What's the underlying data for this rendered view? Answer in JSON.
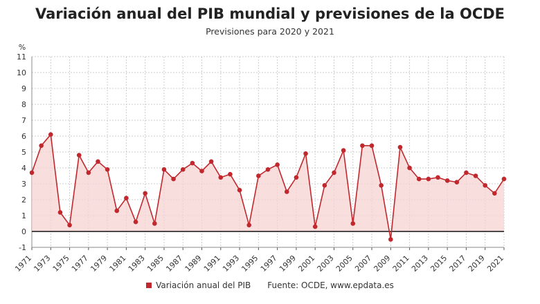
{
  "colors": {
    "line": "#c0282d",
    "fill": "#f7d3d3",
    "grid": "#cccccc",
    "zero": "#111111"
  },
  "chart_data": {
    "type": "line",
    "title": "Variación anual del PIB mundial y previsiones de la OCDE",
    "subtitle": "Previsiones para 2020 y 2021",
    "ylabel": "%",
    "ylim": [
      -1,
      11
    ],
    "grid": true,
    "series": [
      {
        "name": "Variación anual del PIB",
        "x": [
          1971,
          1972,
          1973,
          1974,
          1975,
          1976,
          1977,
          1978,
          1979,
          1980,
          1981,
          1982,
          1983,
          1984,
          1985,
          1986,
          1987,
          1988,
          1989,
          1990,
          1991,
          1992,
          1993,
          1994,
          1995,
          1996,
          1997,
          1998,
          1999,
          2000,
          2001,
          2002,
          2003,
          2004,
          2005,
          2006,
          2007,
          2008,
          2009,
          2010,
          2011,
          2012,
          2013,
          2014,
          2015,
          2016,
          2017,
          2018,
          2019,
          2020,
          2021
        ],
        "values": [
          3.7,
          5.4,
          6.1,
          1.2,
          0.4,
          4.8,
          3.7,
          4.4,
          3.9,
          1.3,
          2.1,
          0.6,
          2.4,
          0.5,
          3.9,
          3.3,
          3.9,
          4.3,
          3.8,
          4.4,
          3.4,
          3.6,
          2.6,
          0.4,
          3.5,
          3.9,
          4.2,
          2.5,
          3.4,
          4.9,
          0.3,
          2.9,
          3.7,
          5.1,
          0.5,
          5.4,
          5.4,
          2.9,
          -0.5,
          5.3,
          4.0,
          3.3,
          3.3,
          3.4,
          3.2,
          3.1,
          3.7,
          3.5,
          2.9,
          2.4,
          3.3
        ]
      }
    ],
    "yticks": [
      "-1",
      "0",
      "1",
      "2",
      "3",
      "4",
      "5",
      "6",
      "7",
      "8",
      "9",
      "10",
      "11"
    ],
    "xticks": [
      "1971",
      "1973",
      "1975",
      "1977",
      "1979",
      "1981",
      "1983",
      "1985",
      "1987",
      "1989",
      "1991",
      "1993",
      "1995",
      "1997",
      "1999",
      "2001",
      "2003",
      "2005",
      "2007",
      "2009",
      "2011",
      "2013",
      "2015",
      "2017",
      "2019",
      "2021"
    ],
    "legend": {
      "label": "Variación anual del PIB",
      "position": "bottom"
    },
    "source": "Fuente: OCDE, www.epdata.es"
  }
}
